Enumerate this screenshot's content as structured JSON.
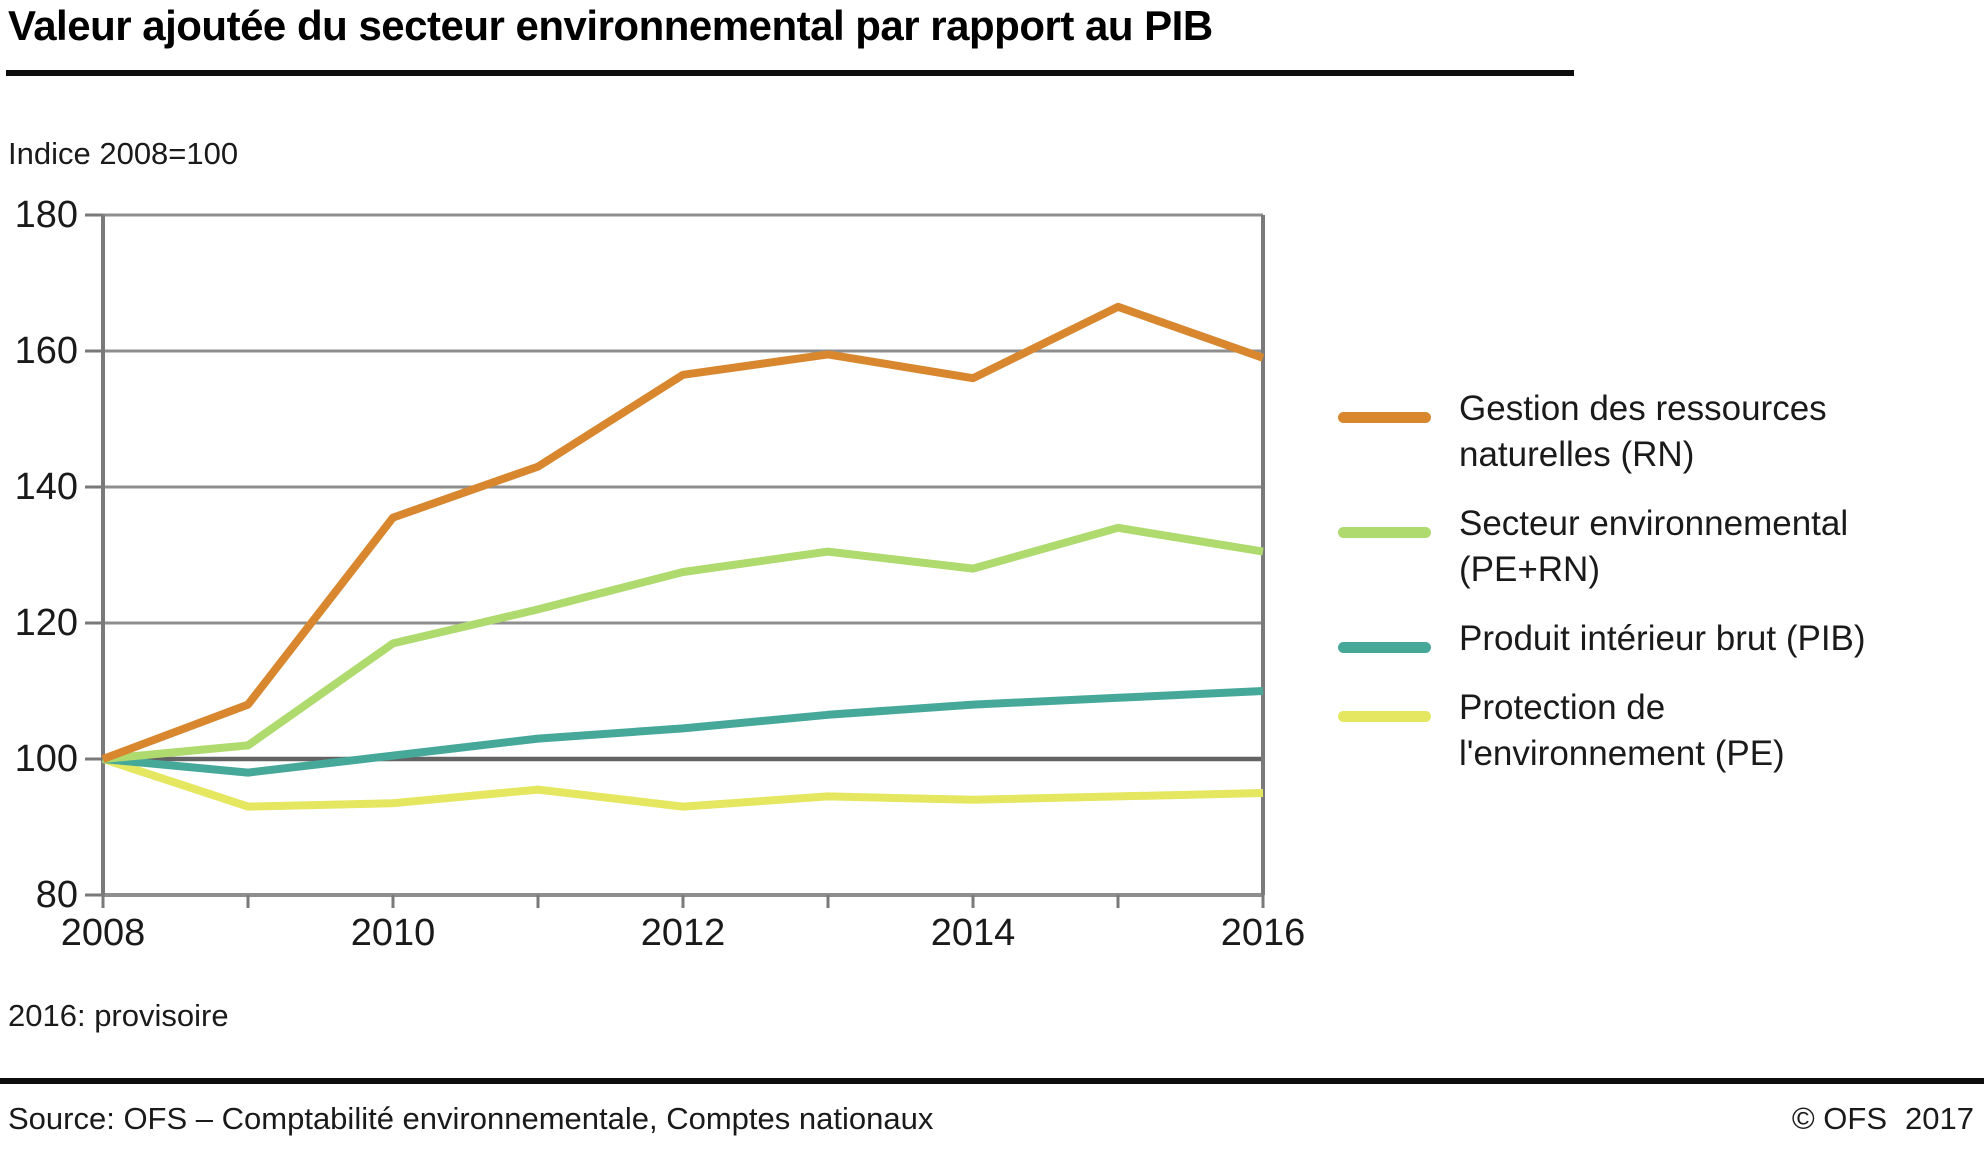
{
  "header": {
    "title": "Valeur ajoutée du secteur environnemental par rapport au PIB",
    "unit_label": "Indice 2008=100"
  },
  "note": "2016: provisoire",
  "footer": {
    "source": "Source: OFS – Comptabilité environnementale, Comptes nationaux",
    "copyright": "© OFS",
    "year": "2017"
  },
  "colors": {
    "gridline": "#8E8E8E",
    "axis": "#7A7A7A",
    "baseline": "#636363",
    "text": "#1a1a1a"
  },
  "chart_data": {
    "type": "line",
    "title": "Valeur ajoutée du secteur environnemental par rapport au PIB",
    "xlabel": "",
    "ylabel": "Indice 2008=100",
    "x": [
      2008,
      2009,
      2010,
      2011,
      2012,
      2013,
      2014,
      2015,
      2016
    ],
    "x_tick_labels": [
      "2008",
      "",
      "2010",
      "",
      "2012",
      "",
      "2014",
      "",
      "2016"
    ],
    "ylim": [
      80,
      180
    ],
    "yticks": [
      180,
      160,
      140,
      120,
      100,
      80
    ],
    "baseline_value": 100,
    "grid": true,
    "legend_position": "right",
    "series": [
      {
        "name": "Gestion des ressources naturelles (RN)",
        "color": "#D8872F",
        "values": [
          100,
          108,
          135.5,
          143,
          156.5,
          159.5,
          156,
          166.5,
          159
        ]
      },
      {
        "name": "Secteur environnemental (PE+RN)",
        "color": "#AEDA6E",
        "values": [
          100,
          102,
          117,
          122,
          127.5,
          130.5,
          128,
          134,
          130.5
        ]
      },
      {
        "name": "Produit intérieur brut (PIB)",
        "color": "#46A899",
        "values": [
          100,
          98,
          100.5,
          103,
          104.5,
          106.5,
          108,
          109,
          110
        ]
      },
      {
        "name": "Protection de l'environnement (PE)",
        "color": "#E4E75F",
        "values": [
          100,
          93,
          93.5,
          95.5,
          93,
          94.5,
          94,
          94.5,
          95
        ]
      }
    ]
  }
}
